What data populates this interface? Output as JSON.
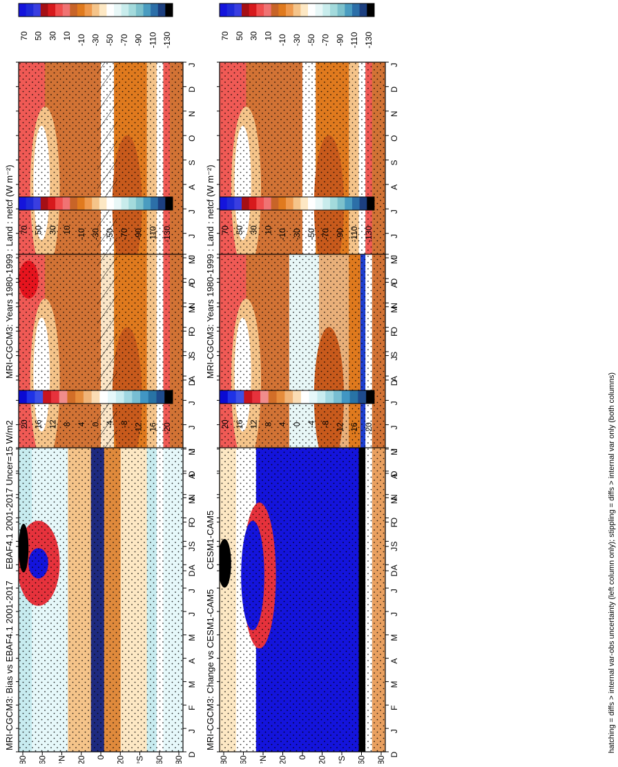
{
  "footnote": "hatching = diffs > internal var-obs uncertainty (left column only); stippling = diffs > internal var only (both columns)",
  "months": [
    "D",
    "J",
    "F",
    "M",
    "A",
    "M",
    "J",
    "J",
    "A",
    "S",
    "O",
    "N",
    "D",
    "J"
  ],
  "lat_ticks": [
    "80",
    "60",
    "°N",
    "20",
    "0",
    "20",
    "°S",
    "60",
    "80"
  ],
  "colorbars": {
    "abs": {
      "labels": [
        "70",
        "50",
        "30",
        "10",
        "-10",
        "-30",
        "-50",
        "-70",
        "-90",
        "-110",
        "-130"
      ],
      "colors": [
        "#1414dc",
        "#1e2ad8",
        "#3a3ee0",
        "#a50f15",
        "#d7191c",
        "#f04e4e",
        "#f07373",
        "#c86428",
        "#e07a1e",
        "#ef9a4e",
        "#f5c48a",
        "#fde8c4",
        "#ffffff",
        "#e8f7f7",
        "#c8ecec",
        "#a3dadc",
        "#7cc1cc",
        "#4a9cc0",
        "#2c6fa8",
        "#1c3f80",
        "#000000"
      ]
    },
    "diff": {
      "labels": [
        "20",
        "16",
        "12",
        "8",
        "4",
        "0",
        "-4",
        "-8",
        "-12",
        "-16",
        "-20"
      ],
      "colors": [
        "#0a0ad2",
        "#1e32e6",
        "#3c50e6",
        "#c8141e",
        "#e6323c",
        "#f08c8c",
        "#d26e28",
        "#e68c3c",
        "#f0b478",
        "#fadcb4",
        "#ffffff",
        "#e6f8fa",
        "#c8ecf0",
        "#a0d7e1",
        "#78bed2",
        "#4196c3",
        "#2873a5",
        "#1e4b8c",
        "#000000"
      ]
    }
  },
  "chart_data": [
    {
      "type": "heatmap",
      "title": "MRI-CGCM3: Years 1980-1999 : Land : netcf (W m⁻²)",
      "x": "month",
      "y": "latitude"
    },
    {
      "type": "heatmap",
      "title": "EBAF4.1 2001-2017 Uncer=15 W/m2",
      "x": "month",
      "y": "latitude"
    },
    {
      "type": "heatmap",
      "title": "MRI-CGCM3: Bias vs EBAF4.1 2001-2017",
      "x": "month",
      "y": "latitude"
    },
    {
      "type": "heatmap",
      "title": "MRI-CGCM3: Years 1980-1999 : Land : netcf (W m⁻²)",
      "x": "month",
      "y": "latitude"
    },
    {
      "type": "heatmap",
      "title": "CESM1-CAM5",
      "x": "month",
      "y": "latitude"
    },
    {
      "type": "heatmap",
      "title": "MRI-CGCM3: Change vs CESM1-CAM5",
      "x": "month",
      "y": "latitude"
    }
  ]
}
